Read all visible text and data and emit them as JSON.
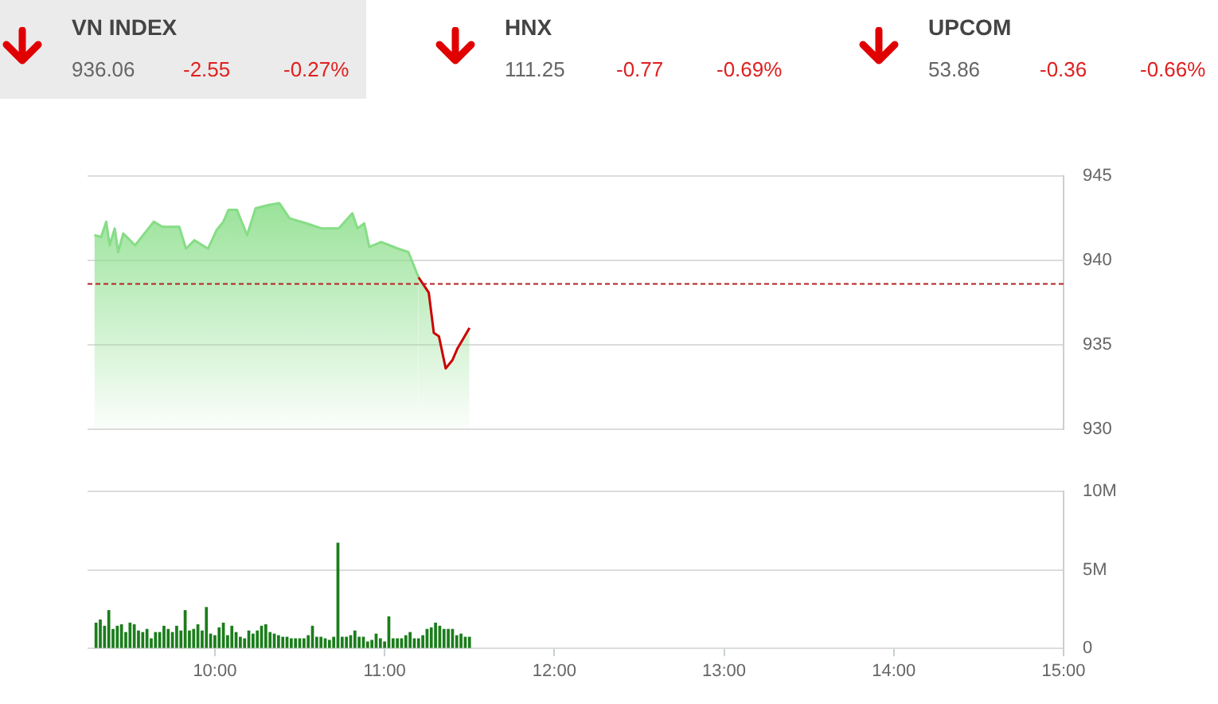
{
  "chart_data": [
    {
      "type": "other",
      "annotations": [
        "VN INDEX",
        "936.06",
        "-2.55",
        "-0.27%",
        "HNX",
        "111.25",
        "-0.77",
        "-0.69%",
        "UPCOM",
        "53.86",
        "-0.36",
        "-0.66%"
      ]
    },
    {
      "type": "area",
      "x": [
        9.29,
        9.33,
        9.36,
        9.38,
        9.41,
        9.43,
        9.46,
        9.53,
        9.64,
        9.69,
        9.79,
        9.83,
        9.88,
        9.96,
        10.01,
        10.05,
        10.08,
        10.13,
        10.19,
        10.24,
        10.32,
        10.38,
        10.44,
        10.54,
        10.63,
        10.73,
        10.81,
        10.84,
        10.88,
        10.91,
        10.98,
        11.08,
        11.14,
        11.2,
        11.26,
        11.29,
        11.32,
        11.36,
        11.4,
        11.43,
        11.46,
        11.5
      ],
      "series": [
        {
          "color": "#86dd86",
          "colors": [
            "#86dd86",
            "#86dd86",
            "#86dd86",
            "#86dd86",
            "#86dd86",
            "#86dd86",
            "#86dd86",
            "#86dd86",
            "#86dd86",
            "#86dd86",
            "#86dd86",
            "#86dd86",
            "#86dd86",
            "#86dd86",
            "#86dd86",
            "#86dd86",
            "#86dd86",
            "#86dd86",
            "#86dd86",
            "#86dd86",
            "#86dd86",
            "#86dd86",
            "#86dd86",
            "#86dd86",
            "#86dd86",
            "#86dd86",
            "#86dd86",
            "#86dd86",
            "#86dd86",
            "#86dd86",
            "#86dd86",
            "#86dd86",
            "#86dd86",
            "#86dd86",
            "#cc0000",
            "#cc0000",
            "#cc0000",
            "#cc0000",
            "#cc0000",
            "#cc0000",
            "#cc0000",
            "#cc0000"
          ],
          "values": [
            941.5,
            941.4,
            942.3,
            940.9,
            941.9,
            940.5,
            941.6,
            940.9,
            942.3,
            942.0,
            942.0,
            940.7,
            941.2,
            940.7,
            941.8,
            942.3,
            943.0,
            943.0,
            941.5,
            943.1,
            943.3,
            943.4,
            942.5,
            942.2,
            941.9,
            941.9,
            942.8,
            941.9,
            942.2,
            940.8,
            941.1,
            940.7,
            940.5,
            939.0,
            938.1,
            935.7,
            935.5,
            933.6,
            934.1,
            934.8,
            935.3,
            936.0
          ]
        }
      ],
      "xlim": [
        9.25,
        15
      ],
      "ylim": [
        930,
        945
      ],
      "yticks": [
        930,
        935,
        940,
        945
      ],
      "grid": "y",
      "tick_labels": "y",
      "ref_lines": [
        {
          "axis": "y",
          "value": 938.61,
          "color": "#b22222",
          "line_style": "dashed"
        }
      ]
    },
    {
      "type": "bar",
      "x": [
        9.3,
        9.325,
        9.35,
        9.375,
        9.4,
        9.425,
        9.45,
        9.475,
        9.5,
        9.525,
        9.55,
        9.575,
        9.6,
        9.625,
        9.65,
        9.675,
        9.7,
        9.725,
        9.75,
        9.775,
        9.8,
        9.825,
        9.85,
        9.875,
        9.9,
        9.925,
        9.95,
        9.975,
        10.0,
        10.025,
        10.05,
        10.075,
        10.1,
        10.125,
        10.15,
        10.175,
        10.2,
        10.225,
        10.25,
        10.275,
        10.3,
        10.325,
        10.35,
        10.375,
        10.4,
        10.425,
        10.45,
        10.475,
        10.5,
        10.525,
        10.55,
        10.575,
        10.6,
        10.625,
        10.65,
        10.675,
        10.7,
        10.725,
        10.75,
        10.775,
        10.8,
        10.825,
        10.85,
        10.875,
        10.9,
        10.925,
        10.95,
        10.975,
        11.0,
        11.025,
        11.05,
        11.075,
        11.1,
        11.125,
        11.15,
        11.175,
        11.2,
        11.225,
        11.25,
        11.275,
        11.3,
        11.325,
        11.35,
        11.375,
        11.4,
        11.425,
        11.45,
        11.475,
        11.5
      ],
      "values": [
        1.6,
        1.8,
        1.4,
        2.4,
        1.2,
        1.4,
        1.5,
        1.0,
        1.6,
        1.5,
        1.1,
        1.0,
        1.2,
        0.6,
        1.0,
        1.0,
        1.4,
        1.2,
        1.0,
        1.4,
        1.1,
        2.4,
        1.1,
        1.2,
        1.5,
        1.1,
        2.6,
        0.9,
        0.8,
        1.3,
        1.6,
        0.8,
        1.4,
        1.0,
        0.7,
        0.6,
        1.1,
        0.9,
        1.1,
        1.4,
        1.5,
        1.0,
        0.9,
        0.8,
        0.7,
        0.7,
        0.6,
        0.6,
        0.6,
        0.6,
        0.8,
        1.4,
        0.7,
        0.7,
        0.6,
        0.5,
        0.7,
        6.7,
        0.7,
        0.7,
        0.8,
        1.1,
        0.7,
        0.7,
        0.4,
        0.5,
        0.9,
        0.6,
        0.4,
        2.0,
        0.6,
        0.6,
        0.6,
        0.8,
        1.0,
        0.6,
        0.6,
        0.8,
        1.2,
        1.3,
        1.6,
        1.4,
        1.2,
        1.2,
        1.2,
        0.8,
        0.9,
        0.7,
        0.7
      ],
      "color": "#1b7d1b",
      "xlim": [
        9.25,
        15
      ],
      "xticks": [
        {
          "value": 10,
          "label": "10:00"
        },
        {
          "value": 11,
          "label": "11:00"
        },
        {
          "value": 12,
          "label": "12:00"
        },
        {
          "value": 13,
          "label": "13:00"
        },
        {
          "value": 14,
          "label": "14:00"
        },
        {
          "value": 15,
          "label": "15:00"
        }
      ],
      "ylim": [
        0,
        10
      ],
      "yticks": [
        0,
        {
          "value": 5,
          "label": "5M"
        },
        {
          "value": 10,
          "label": "10M"
        }
      ],
      "grid": "y"
    }
  ]
}
